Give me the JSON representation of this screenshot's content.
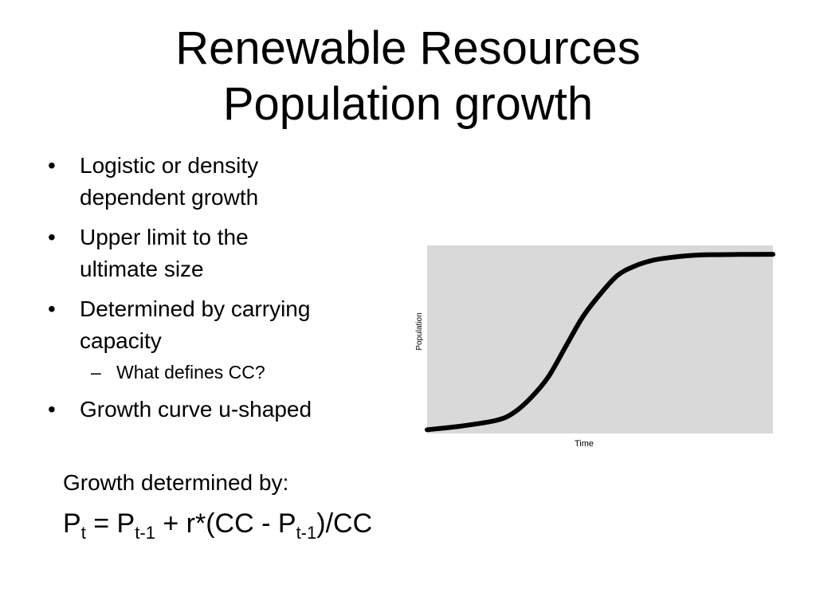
{
  "title": {
    "line1": "Renewable Resources",
    "line2": "Population growth"
  },
  "bullets": [
    "Logistic or density dependent growth",
    "Upper limit to the ultimate size",
    "Determined by carrying capacity",
    "Growth curve u-shaped"
  ],
  "bullet_lines": {
    "b1_l1": "Logistic or density",
    "b1_l2": "dependent growth",
    "b2_l1": "Upper limit to the",
    "b2_l2": "ultimate size",
    "b3_l1": "Determined by carrying",
    "b3_l2": "capacity",
    "b4_l1": "Growth curve u-shaped"
  },
  "markers": {
    "bullet": "•",
    "dash": "–"
  },
  "sub_bullet": "What defines CC?",
  "growth_label": "Growth determined by:",
  "formula": {
    "p": "P",
    "sub_t": "t",
    "equals": " = P",
    "sub_t1": "t-1",
    "plus": " + r*(CC - P",
    "sub_t1b": "t-1",
    "tail": ")/CC"
  },
  "chart_data": {
    "type": "line",
    "xlabel": "Time",
    "ylabel": "Population",
    "xlim": [
      0,
      100
    ],
    "ylim": [
      0,
      100
    ],
    "grid": false,
    "series": [
      {
        "x": [
          0,
          10,
          20,
          25,
          30,
          35,
          40,
          45,
          50,
          55,
          60,
          65,
          70,
          75,
          80,
          90,
          100
        ],
        "y": [
          2,
          4,
          7,
          11,
          19,
          30,
          46,
          62,
          74,
          84,
          89,
          92,
          93.5,
          94.5,
          95,
          95.2,
          95.3
        ]
      }
    ],
    "colors": {
      "plot_background": "#d9d9d9",
      "line": "#000000"
    }
  }
}
